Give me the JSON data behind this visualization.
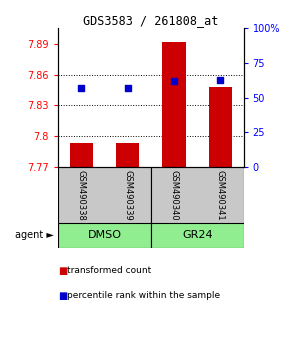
{
  "title": "GDS3583 / 261808_at",
  "samples": [
    "GSM490338",
    "GSM490339",
    "GSM490340",
    "GSM490341"
  ],
  "bar_values": [
    7.793,
    7.793,
    7.892,
    7.848
  ],
  "bar_bottom": 7.77,
  "percentile_values": [
    57,
    57,
    62,
    63
  ],
  "ylim_left": [
    7.77,
    7.905
  ],
  "ylim_right": [
    0,
    100
  ],
  "yticks_left": [
    7.77,
    7.8,
    7.83,
    7.86,
    7.89
  ],
  "ytick_labels_left": [
    "7.77",
    "7.8",
    "7.83",
    "7.86",
    "7.89"
  ],
  "yticks_right": [
    0,
    25,
    50,
    75,
    100
  ],
  "ytick_labels_right": [
    "0",
    "25",
    "50",
    "75",
    "100%"
  ],
  "bar_color": "#CC0000",
  "dot_color": "#0000CC",
  "bar_width": 0.5,
  "grid_ticks": [
    7.8,
    7.83,
    7.86
  ],
  "legend_items": [
    {
      "color": "#CC0000",
      "label": "transformed count"
    },
    {
      "color": "#0000CC",
      "label": "percentile rank within the sample"
    }
  ],
  "group_ranges": [
    [
      0,
      1,
      "DMSO"
    ],
    [
      2,
      3,
      "GR24"
    ]
  ],
  "group_colors": [
    "#90EE90",
    "#90EE90"
  ],
  "sample_box_color": "#C8C8C8",
  "agent_label": "agent"
}
